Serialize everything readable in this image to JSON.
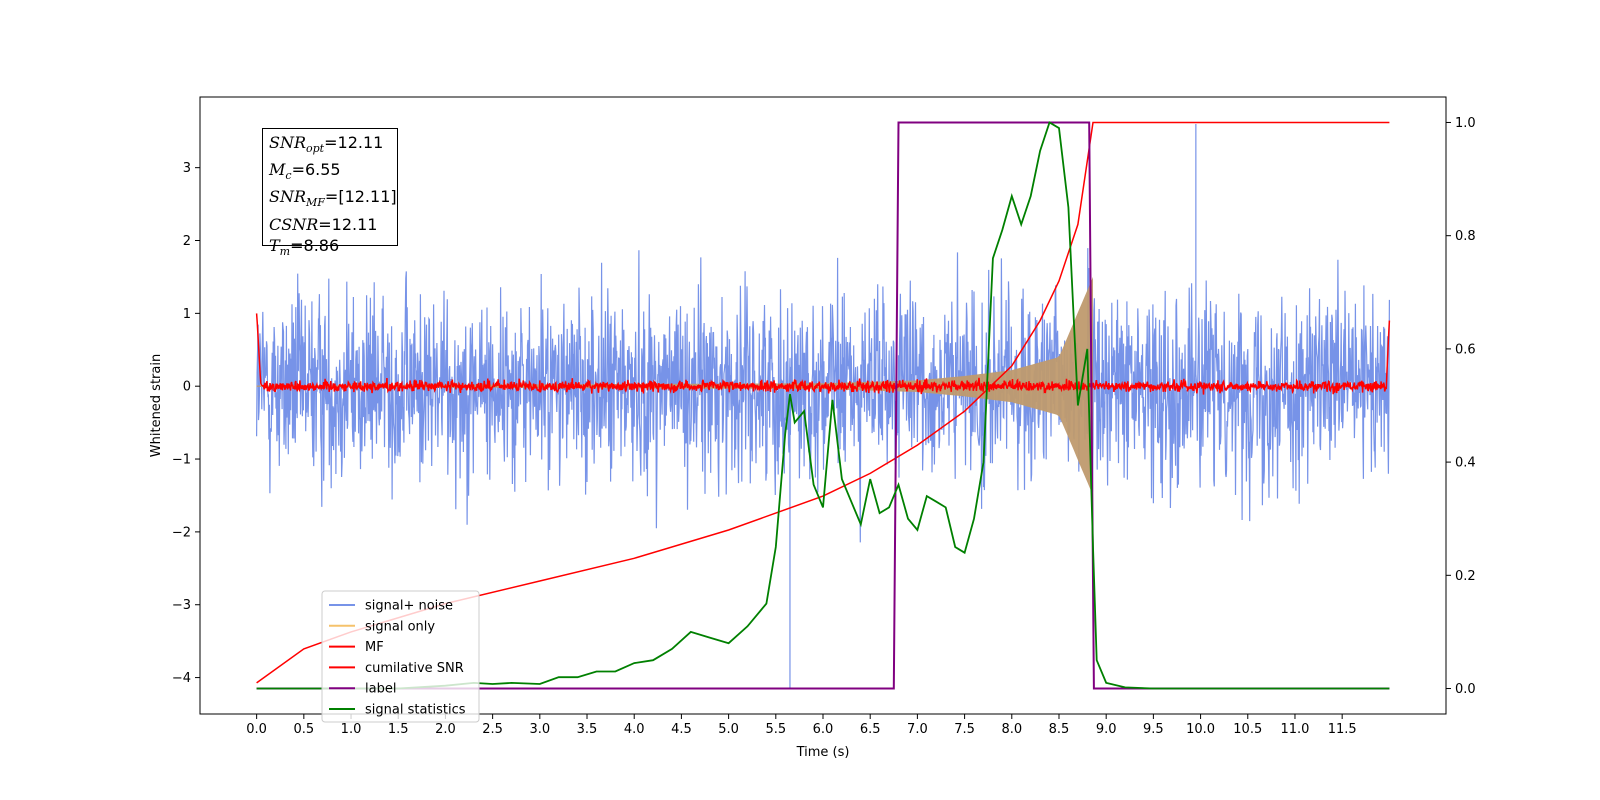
{
  "chart_data": {
    "type": "line",
    "xlabel": "Time (s)",
    "ylabel": "Whitened strain",
    "xlim": [
      -0.6,
      12.6
    ],
    "ylim": [
      -4.5,
      3.97
    ],
    "y2lim": [
      -0.045,
      1.045
    ],
    "xticks": [
      "0.0",
      "0.5",
      "1.0",
      "1.5",
      "2.0",
      "2.5",
      "3.0",
      "3.5",
      "4.0",
      "4.5",
      "5.0",
      "5.5",
      "6.0",
      "6.5",
      "7.0",
      "7.5",
      "8.0",
      "8.5",
      "9.0",
      "9.5",
      "10.0",
      "10.5",
      "11.0",
      "11.5"
    ],
    "yticks": [
      "3",
      "2",
      "1",
      "0",
      "−1",
      "−2",
      "−3",
      "−4"
    ],
    "y2ticks": [
      "1.0",
      "0.8",
      "0.6",
      "0.4",
      "0.2",
      "0.0"
    ],
    "grid": false,
    "legend_position": "lower-left",
    "annotation": {
      "snr_opt_base": "SNR",
      "snr_opt_sub": "opt",
      "snr_opt_value": "=12.11",
      "mc_base": "M",
      "mc_sub": "c",
      "mc_value": "=6.55",
      "snr_mf_base": "SNR",
      "snr_mf_sub": "MF",
      "snr_mf_value": "=[12.11]",
      "csnr_base": "CSNR",
      "csnr_value": "=12.11",
      "tm_base": "T",
      "tm_sub": "m",
      "tm_value": "=8.86"
    },
    "series": [
      {
        "name": "signal+ noise",
        "color": "#7793e8",
        "axis": "left",
        "style": "noise band approx. ±2 (peaks to ±3.4)",
        "t_range": [
          0,
          12
        ]
      },
      {
        "name": "signal only",
        "color": "#f5c26b",
        "axis": "left",
        "envelope": {
          "t": [
            0,
            6.0,
            7.0,
            7.5,
            8.0,
            8.5,
            8.86
          ],
          "amp": [
            0.01,
            0.04,
            0.08,
            0.14,
            0.22,
            0.4,
            1.5
          ]
        }
      },
      {
        "name": "MF",
        "color": "#ff0000",
        "axis": "left",
        "style": "noise around 0, amplitude approx. 0.1"
      },
      {
        "name": "cumilative SNR",
        "color": "#ff0000",
        "axis": "right",
        "x": [
          0,
          0.5,
          1.0,
          2.0,
          3.0,
          4.0,
          5.0,
          6.0,
          6.5,
          7.0,
          7.5,
          8.0,
          8.3,
          8.5,
          8.7,
          8.86,
          12.0
        ],
        "y": [
          0.01,
          0.07,
          0.1,
          0.15,
          0.19,
          0.23,
          0.28,
          0.34,
          0.38,
          0.43,
          0.49,
          0.57,
          0.65,
          0.72,
          0.82,
          1.0,
          1.0
        ]
      },
      {
        "name": "label",
        "color": "#800080",
        "axis": "right",
        "x": [
          0,
          6.75,
          6.8,
          8.82,
          8.87,
          12.0
        ],
        "y": [
          0,
          0,
          1,
          1,
          0,
          0
        ]
      },
      {
        "name": "signal statistics",
        "color": "#008000",
        "axis": "right",
        "x": [
          0,
          0.5,
          1.0,
          1.5,
          2.0,
          2.3,
          2.5,
          2.7,
          3.0,
          3.2,
          3.4,
          3.6,
          3.8,
          4.0,
          4.2,
          4.4,
          4.6,
          4.8,
          5.0,
          5.2,
          5.4,
          5.5,
          5.6,
          5.65,
          5.7,
          5.8,
          5.9,
          6.0,
          6.1,
          6.2,
          6.3,
          6.4,
          6.5,
          6.6,
          6.7,
          6.8,
          6.9,
          7.0,
          7.1,
          7.2,
          7.3,
          7.4,
          7.5,
          7.6,
          7.7,
          7.8,
          7.9,
          8.0,
          8.1,
          8.2,
          8.3,
          8.4,
          8.5,
          8.6,
          8.7,
          8.8,
          8.86,
          8.9,
          9.0,
          9.2,
          9.5,
          10.0,
          11.0,
          12.0
        ],
        "y": [
          0,
          0.0,
          0.0,
          0.0,
          0.005,
          0.01,
          0.008,
          0.01,
          0.008,
          0.02,
          0.02,
          0.03,
          0.03,
          0.045,
          0.05,
          0.07,
          0.1,
          0.09,
          0.08,
          0.11,
          0.15,
          0.25,
          0.45,
          0.52,
          0.47,
          0.49,
          0.36,
          0.32,
          0.51,
          0.37,
          0.33,
          0.29,
          0.37,
          0.31,
          0.32,
          0.36,
          0.3,
          0.28,
          0.34,
          0.33,
          0.32,
          0.25,
          0.24,
          0.3,
          0.4,
          0.76,
          0.81,
          0.87,
          0.82,
          0.87,
          0.95,
          1.0,
          0.99,
          0.85,
          0.5,
          0.6,
          0.25,
          0.05,
          0.01,
          0.002,
          0.0,
          0.0,
          0.0,
          0.0
        ]
      }
    ]
  }
}
